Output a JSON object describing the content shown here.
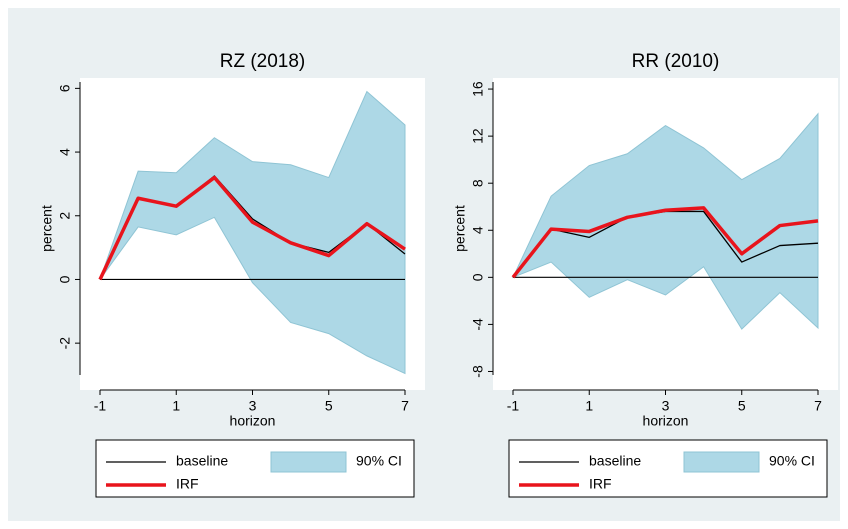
{
  "chart_data": [
    {
      "type": "line",
      "title": "RZ (2018)",
      "xlabel": "horizon",
      "ylabel": "percent",
      "x": [
        -1,
        0,
        1,
        2,
        3,
        4,
        5,
        6,
        7
      ],
      "xlim": [
        -1,
        7
      ],
      "xticks": [
        -1,
        1,
        3,
        5,
        7
      ],
      "ylim": [
        -3,
        6.2
      ],
      "yticks": [
        -2,
        0,
        2,
        4,
        6
      ],
      "hline": 0,
      "band": {
        "name": "90% CI",
        "color": "#add8e6",
        "upper": [
          0,
          3.4,
          3.35,
          4.45,
          3.7,
          3.6,
          3.2,
          5.9,
          4.85
        ],
        "lower": [
          0,
          1.65,
          1.4,
          1.95,
          -0.1,
          -1.35,
          -1.7,
          -2.4,
          -2.95
        ]
      },
      "series": [
        {
          "name": "baseline",
          "color": "#000000",
          "values": [
            0,
            2.55,
            2.3,
            3.25,
            1.9,
            1.15,
            0.85,
            1.75,
            0.8
          ]
        },
        {
          "name": "IRF",
          "color": "#e8141c",
          "values": [
            0,
            2.55,
            2.3,
            3.2,
            1.8,
            1.15,
            0.75,
            1.75,
            0.95
          ]
        }
      ]
    },
    {
      "type": "line",
      "title": "RR (2010)",
      "xlabel": "horizon",
      "ylabel": "percent",
      "x": [
        -1,
        0,
        1,
        2,
        3,
        4,
        5,
        6,
        7
      ],
      "xlim": [
        -1,
        7
      ],
      "xticks": [
        -1,
        1,
        3,
        5,
        7
      ],
      "ylim": [
        -8.3,
        16.6
      ],
      "yticks": [
        -8,
        -4,
        0,
        4,
        8,
        12,
        16
      ],
      "hline": 0,
      "band": {
        "name": "90% CI",
        "color": "#add8e6",
        "upper": [
          0,
          6.9,
          9.5,
          10.5,
          12.9,
          11.0,
          8.3,
          10.1,
          13.9
        ],
        "lower": [
          0,
          1.3,
          -1.7,
          -0.2,
          -1.5,
          0.9,
          -4.4,
          -1.3,
          -4.3
        ]
      },
      "series": [
        {
          "name": "baseline",
          "color": "#000000",
          "values": [
            0,
            4.1,
            3.4,
            5.1,
            5.6,
            5.6,
            1.3,
            2.7,
            2.9
          ]
        },
        {
          "name": "IRF",
          "color": "#e8141c",
          "values": [
            0,
            4.1,
            3.9,
            5.1,
            5.7,
            5.9,
            2.0,
            4.4,
            4.8
          ]
        }
      ]
    }
  ]
}
